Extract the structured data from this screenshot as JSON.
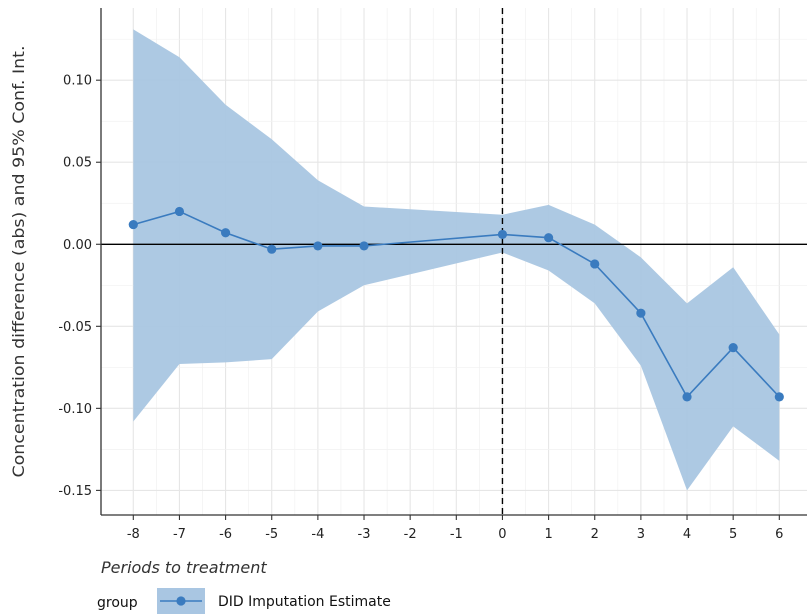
{
  "chart_data": {
    "type": "line",
    "title": "",
    "xlabel": "Periods to treatment",
    "ylabel": "Concentration difference (abs) and 95% Conf. Int.",
    "x": [
      -8,
      -7,
      -6,
      -5,
      -4,
      -3,
      0,
      1,
      2,
      3,
      4,
      5,
      6
    ],
    "x_ticks": [
      -8,
      -7,
      -6,
      -5,
      -4,
      -3,
      -2,
      -1,
      0,
      1,
      2,
      3,
      4,
      5,
      6
    ],
    "y_ticks": [
      0.1,
      0.05,
      0.0,
      -0.05,
      -0.1,
      -0.15
    ],
    "y_tick_labels": [
      "0.10",
      "0.05",
      "0.00",
      "-0.05",
      "-0.10",
      "-0.15"
    ],
    "xlim": [
      -8.7,
      6.6
    ],
    "ylim": [
      -0.165,
      0.144
    ],
    "series": [
      {
        "name": "DID Imputation Estimate",
        "values": [
          0.012,
          0.02,
          0.007,
          -0.003,
          -0.001,
          -0.001,
          0.006,
          0.004,
          -0.012,
          -0.042,
          -0.093,
          -0.063,
          -0.093
        ],
        "ci_upper": [
          0.131,
          0.114,
          0.085,
          0.064,
          0.039,
          0.023,
          0.018,
          0.024,
          0.012,
          -0.008,
          -0.036,
          -0.014,
          -0.055
        ],
        "ci_lower": [
          -0.108,
          -0.073,
          -0.072,
          -0.07,
          -0.041,
          -0.025,
          -0.005,
          -0.016,
          -0.036,
          -0.074,
          -0.15,
          -0.111,
          -0.132
        ],
        "color": "#3a7bbf",
        "band_color": "#a9c6e2"
      }
    ],
    "reference_lines": {
      "horizontal_y": 0,
      "vertical_x": 0,
      "vertical_style": "dashed"
    },
    "grid": true,
    "legend": {
      "position": "bottom-left",
      "title": "group",
      "entries": [
        "DID Imputation Estimate"
      ]
    }
  }
}
